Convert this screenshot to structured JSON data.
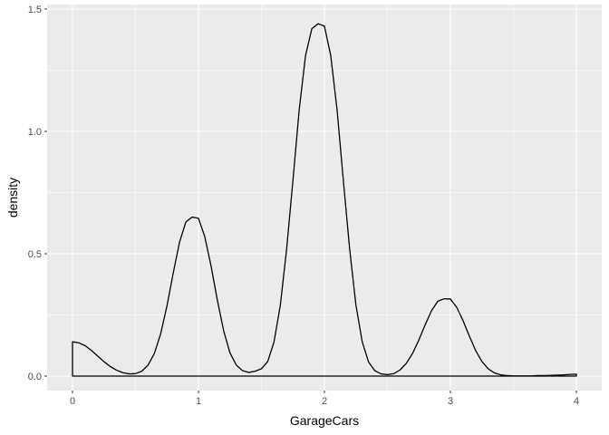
{
  "chart_data": {
    "type": "area",
    "title": "",
    "xlabel": "GarageCars",
    "ylabel": "density",
    "xlim": [
      0,
      4
    ],
    "ylim": [
      0,
      1.5
    ],
    "x_ticks": [
      "0",
      "1",
      "2",
      "3",
      "4"
    ],
    "y_ticks": [
      "0.0",
      "0.5",
      "1.0",
      "1.5"
    ],
    "x_tick_values": [
      0,
      1,
      2,
      3,
      4
    ],
    "y_tick_values": [
      0,
      0.5,
      1.0,
      1.5
    ],
    "grid": true,
    "legend": "none",
    "colors": {
      "panel": "#ebebeb",
      "grid": "#ffffff",
      "line": "#000000",
      "tick": "#4d4d4d"
    },
    "series": [
      {
        "x": [
          0.0,
          0.05,
          0.1,
          0.15,
          0.2,
          0.25,
          0.3,
          0.35,
          0.4,
          0.45,
          0.5,
          0.55,
          0.6,
          0.65,
          0.7,
          0.75,
          0.8,
          0.85,
          0.9,
          0.95,
          1.0,
          1.05,
          1.1,
          1.15,
          1.2,
          1.25,
          1.3,
          1.35,
          1.4,
          1.45,
          1.5,
          1.55,
          1.6,
          1.65,
          1.7,
          1.75,
          1.8,
          1.85,
          1.9,
          1.95,
          2.0,
          2.05,
          2.1,
          2.15,
          2.2,
          2.25,
          2.3,
          2.35,
          2.4,
          2.45,
          2.5,
          2.55,
          2.6,
          2.65,
          2.7,
          2.75,
          2.8,
          2.85,
          2.9,
          2.95,
          3.0,
          3.05,
          3.1,
          3.15,
          3.2,
          3.25,
          3.3,
          3.35,
          3.4,
          3.45,
          3.5,
          3.55,
          3.6,
          3.65,
          3.7,
          3.75,
          3.8,
          3.85,
          3.9,
          3.95,
          4.0
        ],
        "y": [
          0.14,
          0.136,
          0.124,
          0.105,
          0.082,
          0.059,
          0.039,
          0.024,
          0.014,
          0.009,
          0.01,
          0.02,
          0.045,
          0.093,
          0.173,
          0.287,
          0.422,
          0.548,
          0.63,
          0.65,
          0.645,
          0.57,
          0.45,
          0.31,
          0.185,
          0.095,
          0.045,
          0.022,
          0.015,
          0.02,
          0.03,
          0.06,
          0.14,
          0.29,
          0.52,
          0.8,
          1.09,
          1.31,
          1.42,
          1.44,
          1.43,
          1.31,
          1.09,
          0.8,
          0.52,
          0.29,
          0.14,
          0.058,
          0.022,
          0.009,
          0.006,
          0.01,
          0.025,
          0.052,
          0.093,
          0.148,
          0.21,
          0.267,
          0.306,
          0.316,
          0.315,
          0.281,
          0.227,
          0.164,
          0.105,
          0.06,
          0.03,
          0.013,
          0.005,
          0.002,
          0.001,
          0.001,
          0.001,
          0.001,
          0.002,
          0.002,
          0.003,
          0.004,
          0.005,
          0.007,
          0.008
        ]
      }
    ]
  }
}
